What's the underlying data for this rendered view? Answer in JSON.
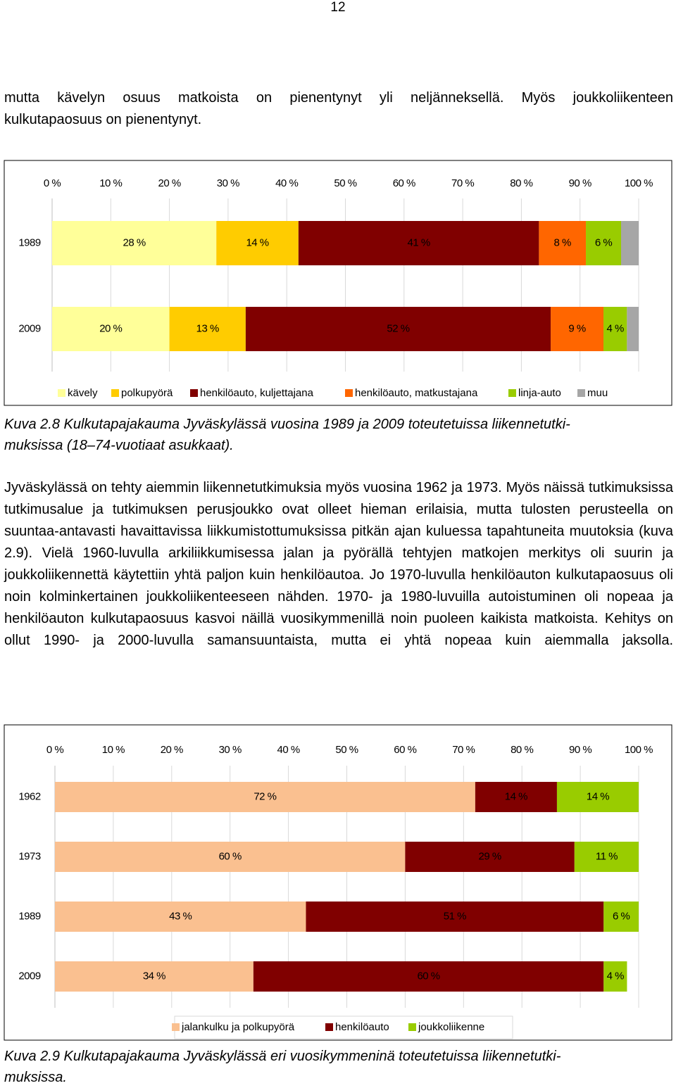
{
  "page_number": "12",
  "intro_text_1": "mutta kävelyn osuus matkoista on pienentynyt yli neljänneksellä. Myös joukkoliikenteen",
  "intro_text_2": "kulkutapaosuus on pienentynyt.",
  "caption_1_1": "Kuva 2.8 Kulkutapajakauma Jyväskylässä vuosina 1989 ja 2009 toteutetuissa liikennetutki-",
  "caption_1_2": "muksissa (18–74-vuotiaat asukkaat).",
  "body_paragraph": "Jyväskylässä on tehty aiemmin liikennetutkimuksia myös vuosina 1962 ja 1973. Myös näissä tutkimuksissa tutkimusalue ja tutkimuksen perusjoukko ovat olleet hieman erilaisia, mutta tulosten perusteella on suuntaa-antavasti havaittavissa liikkumistottumuksissa pitkän ajan kuluessa tapahtuneita muutoksia (kuva 2.9). Vielä 1960-luvulla arkiliikkumisessa jalan ja pyörällä tehtyjen matkojen merkitys oli suurin ja joukkoliikennettä käytettiin yhtä paljon kuin henkilöautoa. Jo 1970-luvulla henkilöauton kulkutapaosuus oli noin kolminkertainen joukkoliikenteeseen nähden. 1970- ja 1980-luvuilla autoistuminen oli nopeaa ja henkilöauton kulkutapaosuus kasvoi näillä vuosikymmenillä noin puoleen kaikista matkoista. Kehitys on ollut 1990- ja 2000-luvulla samansuuntaista, mutta ei yhtä nopeaa kuin aiemmalla jaksolla.",
  "caption_2_1": "Kuva 2.9 Kulkutapajakauma Jyväskylässä eri vuosikymmeninä toteutetuissa liikennetutki-",
  "caption_2_2": "muksissa.",
  "chart_data": [
    {
      "type": "bar",
      "orientation": "horizontal",
      "stacked": true,
      "percent_stacked": true,
      "x_ticks": [
        "0 %",
        "10 %",
        "20 %",
        "30 %",
        "40 %",
        "50 %",
        "60 %",
        "70 %",
        "80 %",
        "90 %",
        "100 %"
      ],
      "xlim": [
        0,
        100
      ],
      "x_axis_position": "top",
      "categories": [
        "1989",
        "2009"
      ],
      "series": [
        {
          "name": "kävely",
          "color": "#FFFF99",
          "values": [
            28,
            20
          ],
          "labels": [
            "28 %",
            "20 %"
          ]
        },
        {
          "name": "polkupyörä",
          "color": "#FFCC00",
          "values": [
            14,
            13
          ],
          "labels": [
            "14 %",
            "13 %"
          ]
        },
        {
          "name": "henkilöauto, kuljettajana",
          "color": "#800000",
          "values": [
            41,
            52
          ],
          "labels": [
            "41 %",
            "52 %"
          ]
        },
        {
          "name": "henkilöauto, matkustajana",
          "color": "#FF6600",
          "values": [
            8,
            9
          ],
          "labels": [
            "8 %",
            "9 %"
          ]
        },
        {
          "name": "linja-auto",
          "color": "#99CC00",
          "values": [
            6,
            4
          ],
          "labels": [
            "6 %",
            "4 %"
          ]
        },
        {
          "name": "muu",
          "color": "#A6A6A6",
          "values": [
            3,
            2
          ],
          "labels": [
            "",
            ""
          ]
        }
      ],
      "legend_position": "bottom"
    },
    {
      "type": "bar",
      "orientation": "horizontal",
      "stacked": true,
      "percent_stacked": true,
      "x_ticks": [
        "0 %",
        "10 %",
        "20 %",
        "30 %",
        "40 %",
        "50 %",
        "60 %",
        "70 %",
        "80 %",
        "90 %",
        "100 %"
      ],
      "xlim": [
        0,
        100
      ],
      "x_axis_position": "top",
      "categories": [
        "1962",
        "1973",
        "1989",
        "2009"
      ],
      "series": [
        {
          "name": "jalankulku ja polkupyörä",
          "color": "#FAC090",
          "values": [
            72,
            60,
            43,
            34
          ],
          "labels": [
            "72 %",
            "60 %",
            "43 %",
            "34 %"
          ]
        },
        {
          "name": "henkilöauto",
          "color": "#800000",
          "values": [
            14,
            29,
            51,
            60
          ],
          "labels": [
            "14 %",
            "29 %",
            "51 %",
            "60 %"
          ]
        },
        {
          "name": "joukkoliikenne",
          "color": "#99CC00",
          "values": [
            14,
            11,
            6,
            4
          ],
          "labels": [
            "14 %",
            "11 %",
            "6 %",
            "4 %"
          ]
        }
      ],
      "legend_position": "bottom"
    }
  ]
}
